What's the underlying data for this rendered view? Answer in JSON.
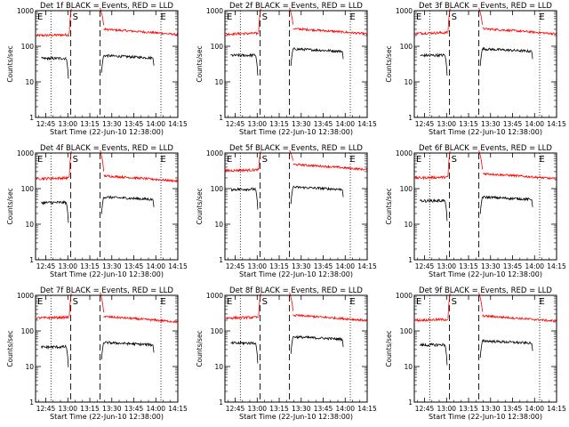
{
  "chart_data": {
    "type": "line",
    "layout": "3x3 grid",
    "x_ticks": [
      "12:45",
      "13:00",
      "13:15",
      "13:30",
      "13:45",
      "14:00",
      "14:15"
    ],
    "x_range_minutes_from_start": [
      0,
      97
    ],
    "xlabel": "Start Time (22-Jun-10 12:38:00)",
    "ylabel": "Counts/sec",
    "y_scale": "log",
    "ylim": [
      1,
      1000
    ],
    "y_ticks": [
      "1",
      "10",
      "100",
      "1000"
    ],
    "colors": {
      "events": "#000000",
      "lld": "#ff0000"
    },
    "markers": {
      "dotted_minutes": [
        10.5,
        85.5
      ],
      "dashed_minutes": [
        24,
        44
      ],
      "letters": [
        {
          "text": "E",
          "minute": 0
        },
        {
          "text": "S",
          "minute": 24
        },
        {
          "text": "E",
          "minute": 84
        }
      ]
    },
    "panels": [
      {
        "title": "Det 1f BLACK = Events, RED = LLD",
        "lld_before": 200,
        "lld_after": 250,
        "events_before": 45,
        "events_after": 52
      },
      {
        "title": "Det 2f BLACK = Events, RED = LLD",
        "lld_before": 220,
        "lld_after": 260,
        "events_before": 55,
        "events_after": 80
      },
      {
        "title": "Det 3f BLACK = Events, RED = LLD",
        "lld_before": 230,
        "lld_after": 260,
        "events_before": 55,
        "events_after": 80
      },
      {
        "title": "Det 4f BLACK = Events, RED = LLD",
        "lld_before": 190,
        "lld_after": 190,
        "events_before": 40,
        "events_after": 55
      },
      {
        "title": "Det 5f BLACK = Events, RED = LLD",
        "lld_before": 320,
        "lld_after": 400,
        "events_before": 95,
        "events_after": 105
      },
      {
        "title": "Det 6f BLACK = Events, RED = LLD",
        "lld_before": 200,
        "lld_after": 220,
        "events_before": 45,
        "events_after": 55
      },
      {
        "title": "Det 7f BLACK = Events, RED = LLD",
        "lld_before": 230,
        "lld_after": 210,
        "events_before": 35,
        "events_after": 45
      },
      {
        "title": "Det 8f BLACK = Events, RED = LLD",
        "lld_before": 230,
        "lld_after": 230,
        "events_before": 45,
        "events_after": 65
      },
      {
        "title": "Det 9f BLACK = Events, RED = LLD",
        "lld_before": 200,
        "lld_after": 220,
        "events_before": 40,
        "events_after": 50
      }
    ]
  }
}
